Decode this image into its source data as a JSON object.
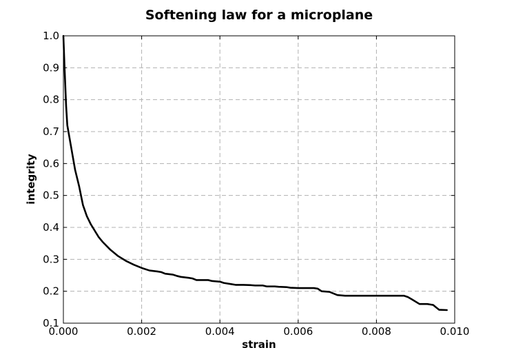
{
  "chart_data": {
    "type": "line",
    "title": "Softening law for a microplane",
    "xlabel": "strain",
    "ylabel": "integrity",
    "xlim": [
      0.0,
      0.01
    ],
    "ylim": [
      0.1,
      1.0
    ],
    "xticks": [
      "0.000",
      "0.002",
      "0.004",
      "0.006",
      "0.008",
      "0.010"
    ],
    "yticks": [
      "0.1",
      "0.2",
      "0.3",
      "0.4",
      "0.5",
      "0.6",
      "0.7",
      "0.8",
      "0.9",
      "1.0"
    ],
    "grid": true,
    "series": [
      {
        "color": "#000000",
        "x": [
          0.0,
          3e-05,
          7e-05,
          0.0001,
          0.0002,
          0.0003,
          0.0004,
          0.0005,
          0.0006,
          0.0007,
          0.0008,
          0.0009,
          0.001,
          0.0012,
          0.0014,
          0.0016,
          0.0018,
          0.002,
          0.0022,
          0.0024,
          0.0025,
          0.0026,
          0.0028,
          0.0029,
          0.003,
          0.0032,
          0.0033,
          0.0034,
          0.0037,
          0.0038,
          0.004,
          0.0041,
          0.0043,
          0.0044,
          0.0046,
          0.0048,
          0.0049,
          0.0051,
          0.0052,
          0.0054,
          0.0055,
          0.0057,
          0.0058,
          0.006,
          0.0064,
          0.0065,
          0.0066,
          0.0068,
          0.007,
          0.0072,
          0.0076,
          0.008,
          0.0084,
          0.0087,
          0.0088,
          0.0089,
          0.0091,
          0.0093,
          0.0094,
          0.00945,
          0.0096,
          0.0098
        ],
        "y": [
          1.0,
          0.9,
          0.78,
          0.72,
          0.65,
          0.58,
          0.53,
          0.47,
          0.435,
          0.41,
          0.39,
          0.37,
          0.355,
          0.33,
          0.31,
          0.295,
          0.283,
          0.273,
          0.265,
          0.262,
          0.26,
          0.255,
          0.252,
          0.248,
          0.245,
          0.242,
          0.24,
          0.235,
          0.235,
          0.232,
          0.23,
          0.226,
          0.222,
          0.22,
          0.22,
          0.219,
          0.218,
          0.218,
          0.215,
          0.215,
          0.214,
          0.213,
          0.211,
          0.21,
          0.21,
          0.208,
          0.2,
          0.198,
          0.188,
          0.186,
          0.186,
          0.186,
          0.186,
          0.186,
          0.182,
          0.175,
          0.16,
          0.16,
          0.158,
          0.157,
          0.142,
          0.141
        ]
      }
    ]
  }
}
